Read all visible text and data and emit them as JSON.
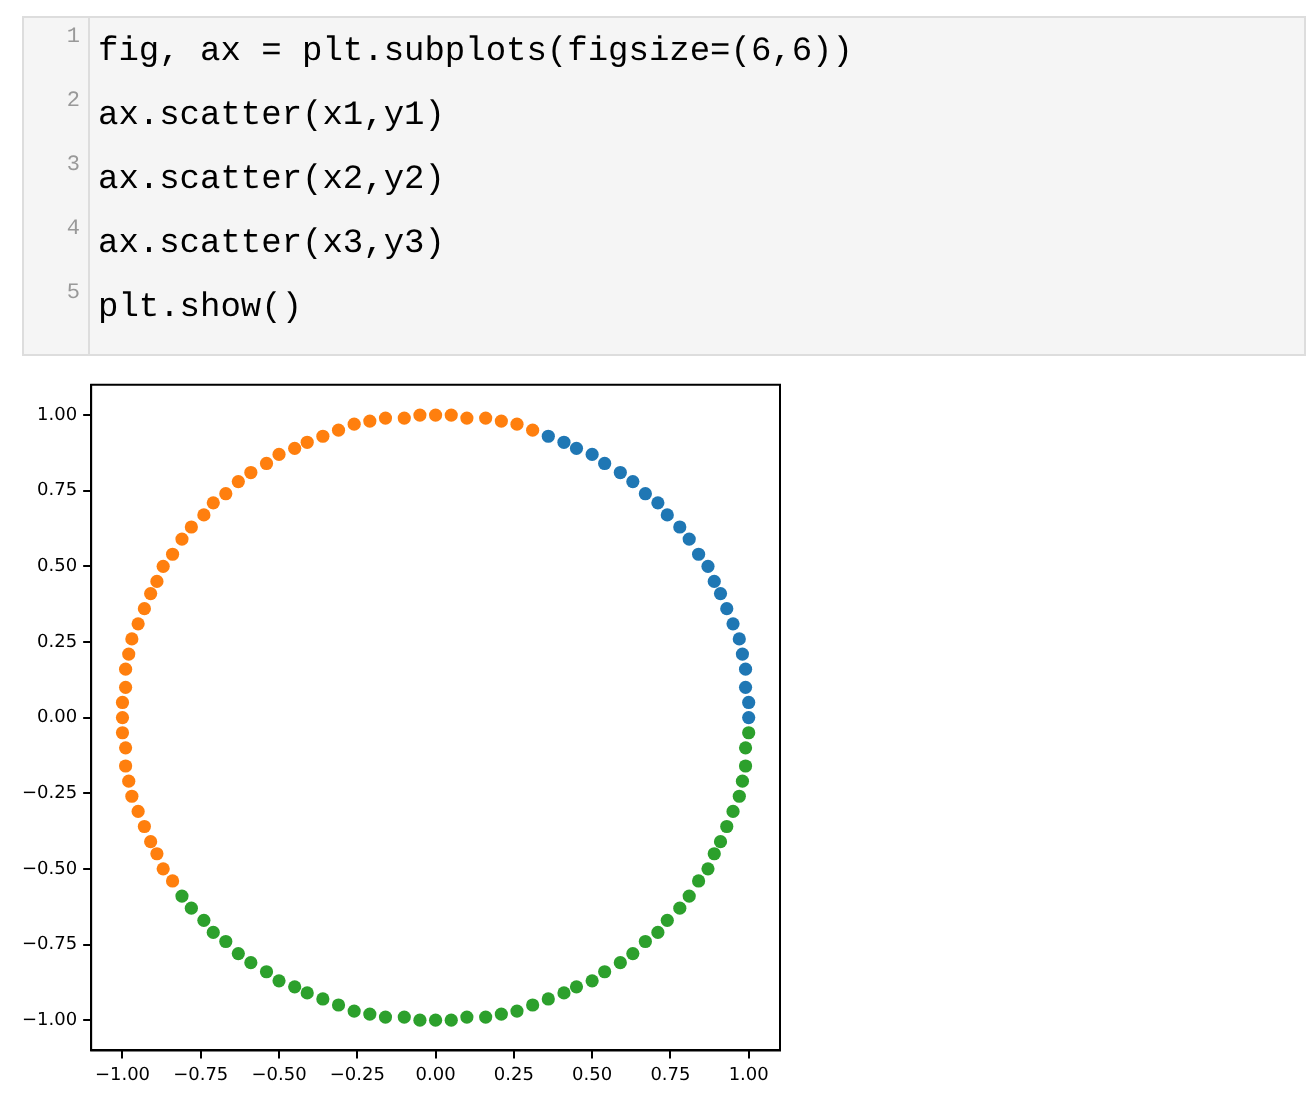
{
  "chart_data": {
    "type": "scatter",
    "marker": "circle",
    "grid": false,
    "legend": false,
    "annotations": [
      "1",
      "fig, ax = plt.subplots(figsize=(6,6))",
      "2",
      "ax.scatter(x1,y1)",
      "3",
      "ax.scatter(x2,y2)",
      "4",
      "ax.scatter(x3,y3)",
      "5",
      "plt.show()"
    ],
    "xlim": [
      -1.1,
      1.1
    ],
    "ylim": [
      -1.1,
      1.1
    ],
    "xticks": [
      {
        "value": -1,
        "label": "−1.00"
      },
      {
        "value": -0.75,
        "label": "−0.75"
      },
      {
        "value": -0.5,
        "label": "−0.50"
      },
      {
        "value": -0.25,
        "label": "−0.25"
      },
      {
        "value": 0,
        "label": "0.00"
      },
      {
        "value": 0.25,
        "label": "0.25"
      },
      {
        "value": 0.5,
        "label": "0.50"
      },
      {
        "value": 0.75,
        "label": "0.75"
      },
      {
        "value": 1,
        "label": "1.00"
      }
    ],
    "yticks": [
      {
        "value": -1,
        "label": "−1.00"
      },
      {
        "value": -0.75,
        "label": "−0.75"
      },
      {
        "value": -0.5,
        "label": "−0.50"
      },
      {
        "value": -0.25,
        "label": "−0.25"
      },
      {
        "value": 0,
        "label": "0.00"
      },
      {
        "value": 0.25,
        "label": "0.25"
      },
      {
        "value": 0.5,
        "label": "0.50"
      },
      {
        "value": 0.75,
        "label": "0.75"
      },
      {
        "value": 1,
        "label": "1.00"
      }
    ],
    "series": [
      {
        "color": "#1f77b4",
        "x": [
          1.0,
          1.0,
          0.99,
          0.99,
          0.98,
          0.97,
          0.95,
          0.93,
          0.91,
          0.89,
          0.87,
          0.84,
          0.81,
          0.78,
          0.74,
          0.71,
          0.67,
          0.63,
          0.59,
          0.54,
          0.5,
          0.45,
          0.41,
          0.36
        ],
        "values": [
          0.0,
          0.05,
          0.1,
          0.16,
          0.21,
          0.26,
          0.31,
          0.36,
          0.41,
          0.45,
          0.5,
          0.54,
          0.59,
          0.63,
          0.67,
          0.71,
          0.74,
          0.78,
          0.81,
          0.84,
          0.87,
          0.89,
          0.91,
          0.93
        ]
      },
      {
        "color": "#ff7f0e",
        "x": [
          0.31,
          0.26,
          0.21,
          0.16,
          0.1,
          0.05,
          0.0,
          -0.05,
          -0.1,
          -0.16,
          -0.21,
          -0.26,
          -0.31,
          -0.36,
          -0.41,
          -0.45,
          -0.5,
          -0.54,
          -0.59,
          -0.63,
          -0.67,
          -0.71,
          -0.74,
          -0.78,
          -0.81,
          -0.84,
          -0.87,
          -0.89,
          -0.91,
          -0.93,
          -0.95,
          -0.97,
          -0.98,
          -0.99,
          -0.99,
          -1.0,
          -1.0,
          -1.0,
          -0.99,
          -0.99,
          -0.98,
          -0.97,
          -0.95,
          -0.93,
          -0.91,
          -0.89,
          -0.87,
          -0.84
        ],
        "values": [
          0.95,
          0.97,
          0.98,
          0.99,
          0.99,
          1.0,
          1.0,
          1.0,
          0.99,
          0.99,
          0.98,
          0.97,
          0.95,
          0.93,
          0.91,
          0.89,
          0.87,
          0.84,
          0.81,
          0.78,
          0.74,
          0.71,
          0.67,
          0.63,
          0.59,
          0.54,
          0.5,
          0.45,
          0.41,
          0.36,
          0.31,
          0.26,
          0.21,
          0.16,
          0.1,
          0.05,
          0.0,
          -0.05,
          -0.1,
          -0.16,
          -0.21,
          -0.26,
          -0.31,
          -0.36,
          -0.41,
          -0.45,
          -0.5,
          -0.54
        ]
      },
      {
        "color": "#2ca02c",
        "x": [
          -0.81,
          -0.78,
          -0.74,
          -0.71,
          -0.67,
          -0.63,
          -0.59,
          -0.54,
          -0.5,
          -0.45,
          -0.41,
          -0.36,
          -0.31,
          -0.26,
          -0.21,
          -0.16,
          -0.1,
          -0.05,
          0.0,
          0.05,
          0.1,
          0.16,
          0.21,
          0.26,
          0.31,
          0.36,
          0.41,
          0.45,
          0.5,
          0.54,
          0.59,
          0.63,
          0.67,
          0.71,
          0.74,
          0.78,
          0.81,
          0.84,
          0.87,
          0.89,
          0.91,
          0.93,
          0.95,
          0.97,
          0.98,
          0.99,
          0.99,
          1.0
        ],
        "values": [
          -0.59,
          -0.63,
          -0.67,
          -0.71,
          -0.74,
          -0.78,
          -0.81,
          -0.84,
          -0.87,
          -0.89,
          -0.91,
          -0.93,
          -0.95,
          -0.97,
          -0.98,
          -0.99,
          -0.99,
          -1.0,
          -1.0,
          -1.0,
          -0.99,
          -0.99,
          -0.98,
          -0.97,
          -0.95,
          -0.93,
          -0.91,
          -0.89,
          -0.87,
          -0.84,
          -0.81,
          -0.78,
          -0.74,
          -0.71,
          -0.67,
          -0.63,
          -0.59,
          -0.54,
          -0.5,
          -0.45,
          -0.41,
          -0.36,
          -0.31,
          -0.26,
          -0.21,
          -0.16,
          -0.1,
          -0.05
        ]
      }
    ]
  }
}
